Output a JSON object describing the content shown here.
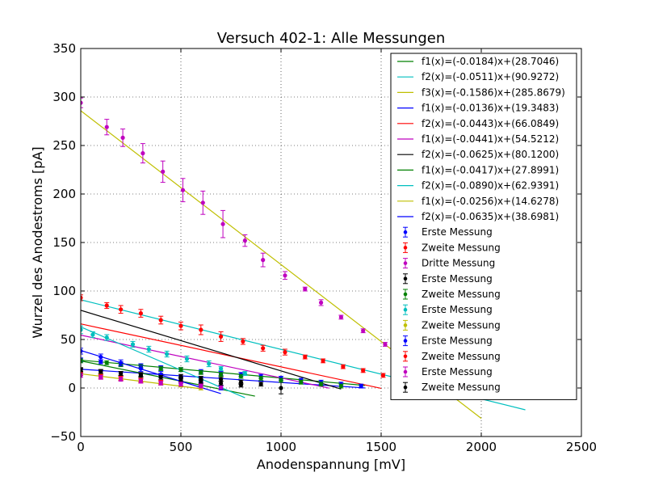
{
  "chart_data": {
    "type": "scatter",
    "title": "Versuch 402-1: Alle Messungen",
    "xlabel": "Anodenspannung [mV]",
    "ylabel": "Wurzel des Anodestroms [pA]",
    "xlim": [
      0,
      2500
    ],
    "ylim": [
      -50,
      350
    ],
    "xticks": [
      0,
      500,
      1000,
      1500,
      2000,
      2500
    ],
    "yticks": [
      -50,
      0,
      50,
      100,
      150,
      200,
      250,
      300,
      350
    ],
    "grid": true,
    "grid_style": "dotted",
    "legend_position": "top-right",
    "fits": [
      {
        "label": "f1(x)=(-0.0184)x+(28.7046)",
        "slope": -0.0184,
        "intercept": 28.7046,
        "xmin": 0,
        "xmax": 1420,
        "color": "#008000"
      },
      {
        "label": "f2(x)=(-0.0511)x+(90.9272)",
        "slope": -0.0511,
        "intercept": 90.9272,
        "xmin": 0,
        "xmax": 2220,
        "color": "#00BFBF"
      },
      {
        "label": "f3(x)=(-0.1586)x+(285.8679)",
        "slope": -0.1586,
        "intercept": 285.8679,
        "xmin": 0,
        "xmax": 2000,
        "color": "#BFBF00"
      },
      {
        "label": "f1(x)=(-0.0136)x+(19.3483)",
        "slope": -0.0136,
        "intercept": 19.3483,
        "xmin": 0,
        "xmax": 1420,
        "color": "#0000FF"
      },
      {
        "label": "f2(x)=(-0.0443)x+(66.0849)",
        "slope": -0.0443,
        "intercept": 66.0849,
        "xmin": 0,
        "xmax": 1500,
        "color": "#FF0000"
      },
      {
        "label": "f1(x)=(-0.0441)x+(54.5212)",
        "slope": -0.0441,
        "intercept": 54.5212,
        "xmin": 0,
        "xmax": 1240,
        "color": "#BF00BF"
      },
      {
        "label": "f2(x)=(-0.0625)x+(80.1200)",
        "slope": -0.0625,
        "intercept": 80.12,
        "xmin": 0,
        "xmax": 1300,
        "color": "#000000"
      },
      {
        "label": "f1(x)=(-0.0417)x+(27.8991)",
        "slope": -0.0417,
        "intercept": 27.8991,
        "xmin": 0,
        "xmax": 870,
        "color": "#008000"
      },
      {
        "label": "f2(x)=(-0.0890)x+(62.9391)",
        "slope": -0.089,
        "intercept": 62.9391,
        "xmin": 0,
        "xmax": 820,
        "color": "#00BFBF"
      },
      {
        "label": "f1(x)=(-0.0256)x+(14.6278)",
        "slope": -0.0256,
        "intercept": 14.6278,
        "xmin": 0,
        "xmax": 600,
        "color": "#BFBF00"
      },
      {
        "label": "f2(x)=(-0.0635)x+(38.6981)",
        "slope": -0.0635,
        "intercept": 38.6981,
        "xmin": 0,
        "xmax": 700,
        "color": "#0000FF"
      }
    ],
    "series": [
      {
        "name": "Erste Messung",
        "color": "#0000FF",
        "x": [
          0,
          100,
          200,
          300,
          400,
          500,
          600,
          700,
          800,
          900,
          1000,
          1100,
          1200,
          1300,
          1400
        ],
        "y": [
          29,
          27,
          25,
          23,
          21,
          19,
          17,
          15,
          14,
          12,
          10,
          8,
          6,
          4,
          2
        ],
        "err": [
          2,
          2,
          2,
          2,
          2,
          2,
          2,
          2,
          2,
          2,
          2,
          2,
          2,
          2,
          2
        ]
      },
      {
        "name": "Zweite Messung",
        "color": "#FF0000",
        "x": [
          0,
          130,
          200,
          300,
          400,
          500,
          600,
          700,
          810,
          910,
          1020,
          1120,
          1210,
          1310,
          1410,
          1510,
          1600,
          1700
        ],
        "y": [
          93,
          85,
          81,
          77,
          70,
          64,
          60,
          53,
          48,
          41,
          37,
          32,
          28,
          22,
          18,
          13,
          9,
          5
        ],
        "err": [
          3,
          3,
          4,
          4,
          4,
          4,
          5,
          5,
          3,
          3,
          3,
          2,
          2,
          2,
          2,
          2,
          2,
          2
        ]
      },
      {
        "name": "Dritte Messung",
        "color": "#BF00BF",
        "x": [
          0,
          130,
          210,
          310,
          410,
          510,
          610,
          710,
          820,
          910,
          1020,
          1120,
          1200,
          1300,
          1410,
          1520
        ],
        "y": [
          294,
          269,
          258,
          242,
          223,
          204,
          191,
          169,
          152,
          132,
          116,
          102,
          88,
          73,
          59,
          45
        ],
        "err": [
          5,
          8,
          9,
          10,
          11,
          12,
          12,
          14,
          6,
          7,
          4,
          2,
          3,
          2,
          2,
          2
        ]
      },
      {
        "name": "Erste Messung",
        "color": "#000000",
        "x": [
          0,
          100,
          200,
          300,
          400,
          500,
          600,
          700,
          800,
          900,
          1000
        ],
        "y": [
          18,
          17,
          15,
          14,
          13,
          12,
          10,
          9,
          6,
          4,
          0
        ],
        "err": [
          2,
          2,
          2,
          2,
          2,
          2,
          2,
          2,
          2,
          2,
          6
        ]
      },
      {
        "name": "Zweite Messung",
        "color": "#008000",
        "x": [
          0,
          130,
          200,
          300,
          400,
          500,
          600,
          700,
          800,
          900,
          1000,
          1100,
          1200,
          1300
        ],
        "y": [
          28,
          26,
          24,
          22,
          20,
          19,
          16,
          14,
          12,
          10,
          8,
          6,
          4,
          2
        ],
        "err": [
          2,
          2,
          2,
          2,
          2,
          2,
          2,
          2,
          2,
          2,
          2,
          2,
          2,
          2
        ]
      },
      {
        "name": "Erste Messung",
        "color": "#00BFBF",
        "x": [
          0,
          60,
          130,
          260,
          340,
          430,
          530,
          640,
          700,
          820
        ],
        "y": [
          60,
          55,
          52,
          45,
          40,
          35,
          30,
          25,
          20,
          15
        ],
        "err": [
          4,
          3,
          3,
          3,
          3,
          3,
          3,
          3,
          2,
          2
        ]
      },
      {
        "name": "Zweite Messung",
        "color": "#BFBF00",
        "x": [
          0,
          100,
          200,
          300,
          400,
          500,
          600
        ],
        "y": [
          15,
          12,
          10,
          8,
          5,
          3,
          0
        ],
        "err": [
          2,
          2,
          2,
          2,
          2,
          2,
          2
        ]
      },
      {
        "name": "Erste Messung",
        "color": "#0000FF",
        "x": [
          0,
          100,
          200,
          300,
          400,
          500,
          600,
          700
        ],
        "y": [
          38,
          32,
          26,
          20,
          14,
          8,
          4,
          0
        ],
        "err": [
          3,
          3,
          3,
          3,
          3,
          3,
          2,
          2
        ]
      },
      {
        "name": "Zweite Messung",
        "color": "#FF0000",
        "x": [
          0,
          100,
          200,
          300,
          400,
          500,
          600
        ],
        "y": [
          15,
          12,
          10,
          8,
          6,
          4,
          2
        ],
        "err": [
          2,
          2,
          2,
          2,
          2,
          2,
          2
        ]
      },
      {
        "name": "Erste Messung",
        "color": "#BF00BF",
        "x": [
          0,
          100,
          200,
          300,
          400,
          500,
          600,
          700
        ],
        "y": [
          13,
          11,
          9,
          7,
          5,
          4,
          2,
          1
        ],
        "err": [
          2,
          2,
          2,
          2,
          2,
          2,
          2,
          2
        ]
      },
      {
        "name": "Zweite Messung",
        "color": "#000000",
        "x": [
          0,
          100,
          200,
          300,
          400,
          500,
          600,
          700,
          800
        ],
        "y": [
          19,
          17,
          15,
          13,
          11,
          9,
          7,
          5,
          3
        ],
        "err": [
          2,
          2,
          2,
          2,
          2,
          2,
          2,
          2,
          2
        ]
      }
    ]
  }
}
